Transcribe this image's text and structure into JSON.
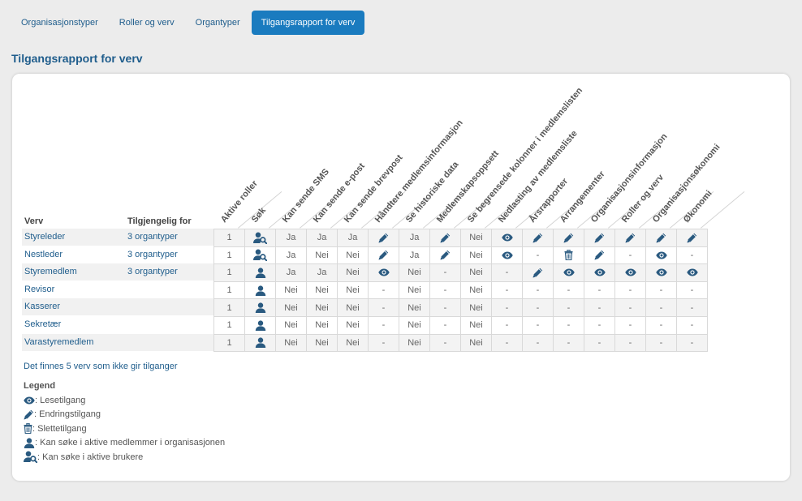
{
  "tabs": [
    {
      "label": "Organisasjonstyper",
      "active": false
    },
    {
      "label": "Roller og verv",
      "active": false
    },
    {
      "label": "Organtyper",
      "active": false
    },
    {
      "label": "Tilgangsrapport for verv",
      "active": true
    }
  ],
  "page_title": "Tilgangsrapport for verv",
  "table": {
    "header_verv": "Verv",
    "header_tilgjengelig": "Tilgjengelig for",
    "columns": [
      "Aktive roller",
      "Søk",
      "Kan sende SMS",
      "Kan sende e-post",
      "Kan sende brevpost",
      "Håndtere medlemsinformasjon",
      "Se historiske data",
      "Medlemskapsoppsett",
      "Se begrensede kolonner i medlemslisten",
      "Nedlasting av medlemsliste",
      "Årsrapporter",
      "Arrangementer",
      "Organisasjonsinformasjon",
      "Roller og verv",
      "Organisasjonsøkonomi",
      "Økonomi"
    ],
    "rows": [
      {
        "verv": "Styreleder",
        "tilgjengelig": "3 organtyper",
        "cells": [
          "1",
          "icon:search-users",
          "Ja",
          "Ja",
          "Ja",
          "icon:edit",
          "Ja",
          "icon:edit",
          "Nei",
          "icon:eye",
          "icon:edit",
          "icon:edit",
          "icon:edit",
          "icon:edit",
          "icon:edit",
          "icon:edit"
        ]
      },
      {
        "verv": "Nestleder",
        "tilgjengelig": "3 organtyper",
        "cells": [
          "1",
          "icon:search-users",
          "Ja",
          "Nei",
          "Nei",
          "icon:edit",
          "Ja",
          "icon:edit",
          "Nei",
          "icon:eye",
          "-",
          "icon:trash",
          "icon:edit",
          "-",
          "icon:eye",
          "-"
        ]
      },
      {
        "verv": "Styremedlem",
        "tilgjengelig": "3 organtyper",
        "cells": [
          "1",
          "icon:search-member",
          "Ja",
          "Ja",
          "Nei",
          "icon:eye",
          "Nei",
          "-",
          "Nei",
          "-",
          "icon:edit",
          "icon:eye",
          "icon:eye",
          "icon:eye",
          "icon:eye",
          "icon:eye"
        ]
      },
      {
        "verv": "Revisor",
        "tilgjengelig": "",
        "cells": [
          "1",
          "icon:search-member",
          "Nei",
          "Nei",
          "Nei",
          "-",
          "Nei",
          "-",
          "Nei",
          "-",
          "-",
          "-",
          "-",
          "-",
          "-",
          "-"
        ]
      },
      {
        "verv": "Kasserer",
        "tilgjengelig": "",
        "cells": [
          "1",
          "icon:search-member",
          "Nei",
          "Nei",
          "Nei",
          "-",
          "Nei",
          "-",
          "Nei",
          "-",
          "-",
          "-",
          "-",
          "-",
          "-",
          "-"
        ]
      },
      {
        "verv": "Sekretær",
        "tilgjengelig": "",
        "cells": [
          "1",
          "icon:search-member",
          "Nei",
          "Nei",
          "Nei",
          "-",
          "Nei",
          "-",
          "Nei",
          "-",
          "-",
          "-",
          "-",
          "-",
          "-",
          "-"
        ]
      },
      {
        "verv": "Varastyremedlem",
        "tilgjengelig": "",
        "cells": [
          "1",
          "icon:search-member",
          "Nei",
          "Nei",
          "Nei",
          "-",
          "Nei",
          "-",
          "Nei",
          "-",
          "-",
          "-",
          "-",
          "-",
          "-",
          "-"
        ]
      }
    ]
  },
  "note": "Det finnes 5 verv som ikke gir tilganger",
  "legend": {
    "title": "Legend",
    "items": [
      {
        "icon": "eye",
        "text": ": Lesetilgang"
      },
      {
        "icon": "edit",
        "text": ": Endringstilgang"
      },
      {
        "icon": "trash",
        "text": ": Slettetilgang"
      },
      {
        "icon": "search-member",
        "text": ": Kan søke i aktive medlemmer i organisasjonen"
      },
      {
        "icon": "search-users",
        "text": ": Kan søke i aktive brukere"
      }
    ]
  },
  "colors": {
    "accent": "#1a7bbf",
    "link": "#1f5d8c",
    "icon": "#2a5a80"
  }
}
